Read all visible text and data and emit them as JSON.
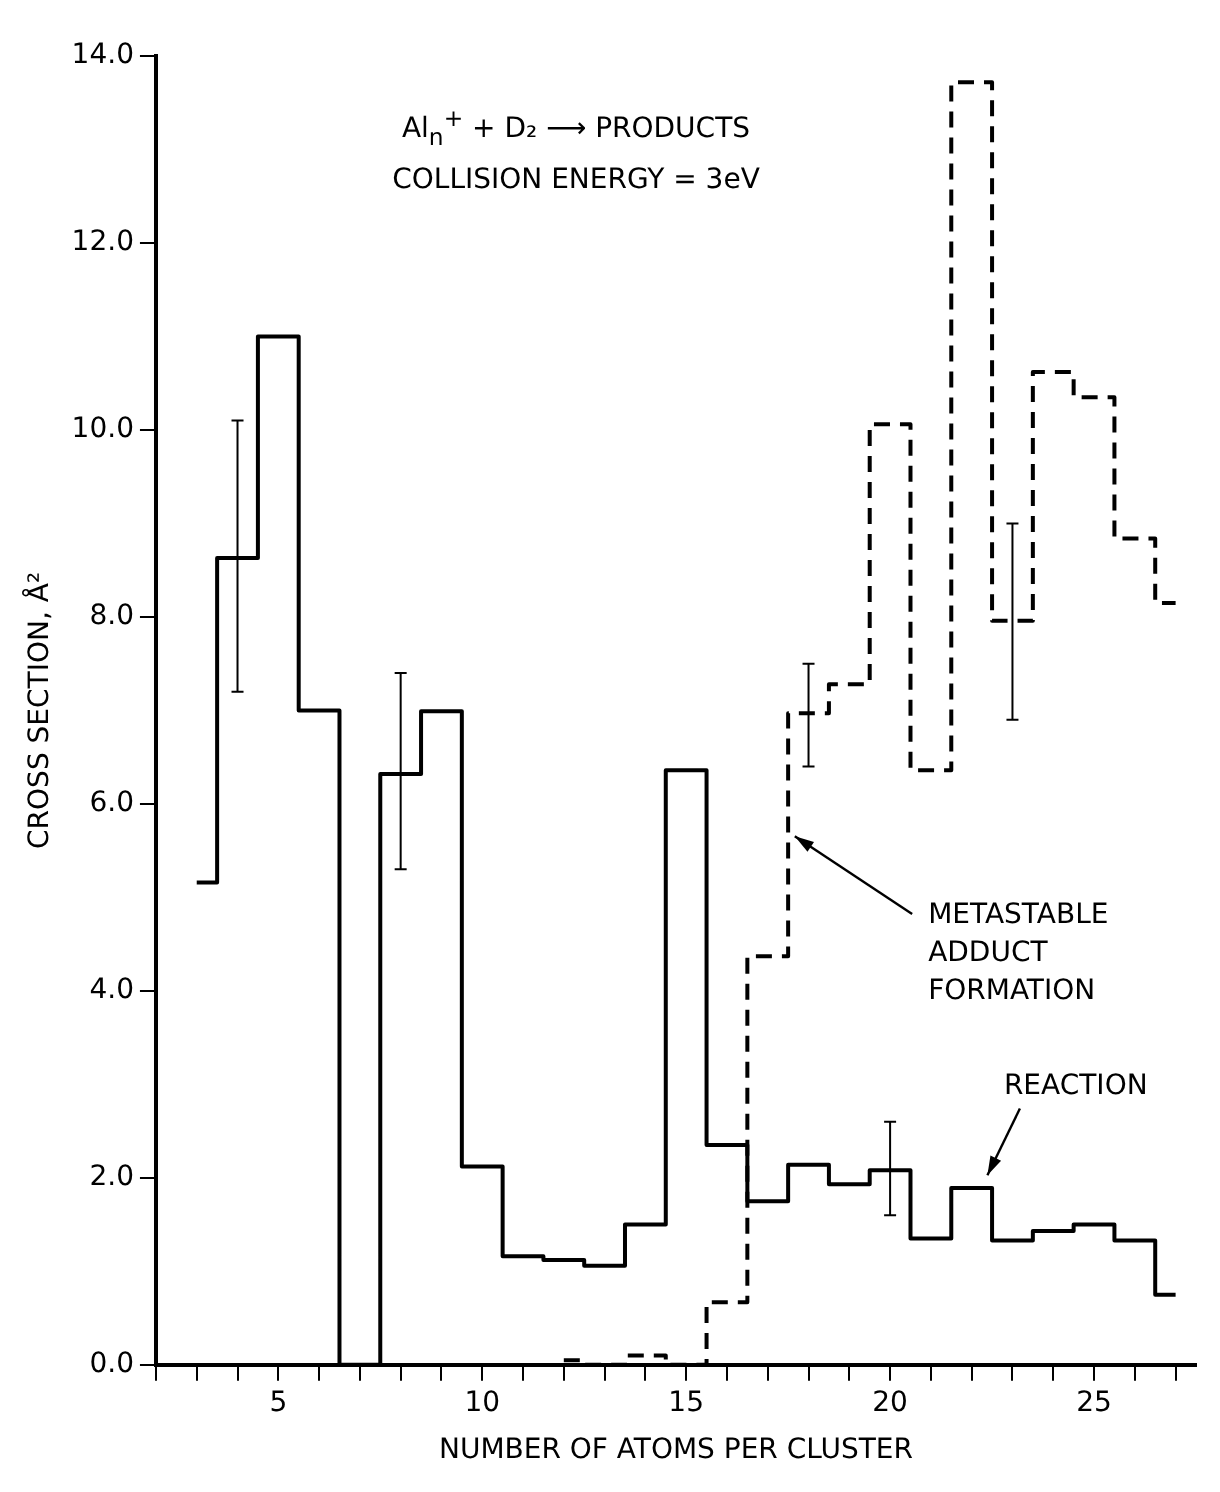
{
  "chart_data": {
    "type": "step",
    "title": "Al$_{n}$$^{+}$ + D₂ ⟶ PRODUCTS",
    "subtitle": "COLLISION ENERGY = 3eV",
    "xlabel": "NUMBER OF ATOMS PER CLUSTER",
    "ylabel": "CROSS SECTION, Å²",
    "x": [
      3,
      4,
      5,
      6,
      7,
      8,
      9,
      10,
      11,
      12,
      13,
      14,
      15,
      16,
      17,
      18,
      19,
      20,
      21,
      22,
      23,
      24,
      25,
      26,
      27
    ],
    "series": [
      {
        "color": "#000000",
        "line_style": "solid",
        "values": [
          5.16,
          8.63,
          11.0,
          7.0,
          0,
          6.32,
          6.99,
          2.12,
          1.16,
          1.12,
          1.06,
          1.5,
          6.36,
          2.35,
          1.75,
          2.14,
          1.93,
          2.08,
          1.35,
          1.89,
          1.33,
          1.43,
          1.5,
          1.33,
          0.75
        ],
        "errors": [
          null,
          [
            7.2,
            10.1
          ],
          null,
          null,
          null,
          [
            5.3,
            7.4
          ],
          null,
          null,
          null,
          null,
          null,
          null,
          null,
          null,
          null,
          null,
          null,
          [
            1.6,
            2.6
          ],
          null,
          null,
          null,
          null,
          null,
          null,
          null
        ]
      },
      {
        "color": "#000000",
        "line_style": "dashed",
        "values": [
          null,
          null,
          null,
          null,
          null,
          null,
          null,
          null,
          null,
          0.05,
          0,
          0.1,
          0,
          0.67,
          4.37,
          6.97,
          7.28,
          10.06,
          6.36,
          13.72,
          7.96,
          10.62,
          10.35,
          8.84,
          8.15
        ],
        "errors": [
          null,
          null,
          null,
          null,
          null,
          null,
          null,
          null,
          null,
          null,
          null,
          null,
          null,
          null,
          null,
          [
            6.4,
            7.5
          ],
          null,
          null,
          null,
          null,
          [
            6.9,
            9.0
          ],
          null,
          null,
          null,
          null
        ]
      }
    ],
    "xlim": [
      2,
      27.5
    ],
    "xticks": [
      {
        "value": 2,
        "label": null
      },
      {
        "value": 3,
        "label": null
      },
      {
        "value": 4,
        "label": null
      },
      5,
      {
        "value": 6,
        "label": null
      },
      {
        "value": 7,
        "label": null
      },
      {
        "value": 8,
        "label": null
      },
      {
        "value": 9,
        "label": null
      },
      10,
      {
        "value": 11,
        "label": null
      },
      {
        "value": 12,
        "label": null
      },
      {
        "value": 13,
        "label": null
      },
      {
        "value": 14,
        "label": null
      },
      15,
      {
        "value": 16,
        "label": null
      },
      {
        "value": 17,
        "label": null
      },
      {
        "value": 18,
        "label": null
      },
      {
        "value": 19,
        "label": null
      },
      20,
      {
        "value": 21,
        "label": null
      },
      {
        "value": 22,
        "label": null
      },
      {
        "value": 23,
        "label": null
      },
      {
        "value": 24,
        "label": null
      },
      25,
      {
        "value": 26,
        "label": null
      },
      {
        "value": 27,
        "label": null
      }
    ],
    "ylim": [
      0,
      14
    ],
    "yticks": [
      {
        "value": 0,
        "label": "0.0"
      },
      {
        "value": 2,
        "label": "2.0"
      },
      {
        "value": 4,
        "label": "4.0"
      },
      {
        "value": 6,
        "label": "6.0"
      },
      {
        "value": 8,
        "label": "8.0"
      },
      {
        "value": 10,
        "label": "10.0"
      },
      {
        "value": 12,
        "label": "12.0"
      },
      {
        "value": 14,
        "label": "14.0"
      }
    ],
    "annotations": [
      {
        "text": "METASTABLE ADDUCT FORMATION",
        "x": 17.5,
        "y": 5.7
      },
      {
        "text": "REACTION",
        "x": 22.3,
        "y": 1.95
      }
    ],
    "grid": false,
    "legend": false
  }
}
